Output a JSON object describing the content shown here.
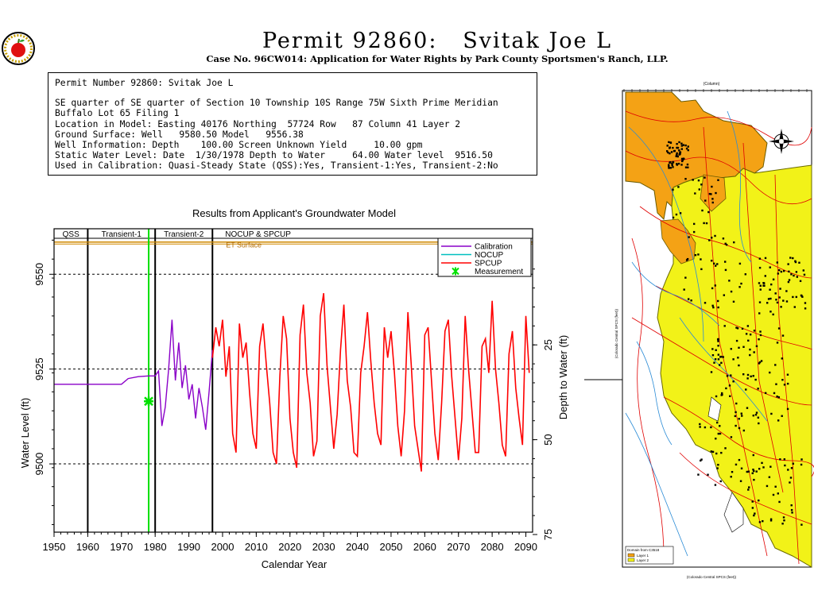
{
  "header": {
    "title": "Permit 92860:   Svitak Joe L",
    "subtitle": "Case No. 96CW014: Application for Water Rights by Park County Sportsmen's Ranch, LLP."
  },
  "logo_icon": "apple-seal-icon",
  "info": {
    "line1": "Permit Number 92860: Svitak Joe L",
    "line2": "SE quarter of SE quarter of Section 10 Township 10S Range 75W Sixth Prime Meridian",
    "line3": "Buffalo Lot 65 Filing 1",
    "line4": "Location in Model: Easting 40176 Northing  57724 Row   87 Column 41 Layer 2",
    "line5": "Ground Surface: Well   9580.50 Model   9556.38",
    "line6": "Well Information: Depth    100.00 Screen Unknown Yield     10.00 gpm",
    "line7": "Static Water Level: Date  1/30/1978 Depth to Water     64.00 Water level  9516.50",
    "line8": "Used in Calibration: Quasi-Steady State (QSS):Yes, Transient-1:Yes, Transient-2:No"
  },
  "chart_data": {
    "type": "line",
    "title": "Results from Applicant's Groundwater Model",
    "xlabel": "Calendar Year",
    "ylabel": "Water Level (ft)",
    "ylabel_right": "Depth to Water (ft)",
    "xlim": [
      1950,
      2092
    ],
    "ylim": [
      9482,
      9562
    ],
    "x_ticks": [
      1950,
      1960,
      1970,
      1980,
      1990,
      2000,
      2010,
      2020,
      2030,
      2040,
      2050,
      2060,
      2070,
      2080,
      2090
    ],
    "y_ticks": [
      9500,
      9525,
      9550
    ],
    "y_right_ticks": [
      25,
      50,
      75
    ],
    "ground_surface_model": 9556.38,
    "period_labels": [
      "QSS",
      "Transient-1",
      "Transient-2",
      "NOCUP & SPCUP"
    ],
    "period_boundaries": [
      1960,
      1980,
      1997
    ],
    "et_surface_label": "ET Surface",
    "et_surface_level": 9558.5,
    "measurement": {
      "year": 1978.08,
      "level": 9516.5,
      "name": "Measurement",
      "color": "#00e000"
    },
    "legend": [
      "Calibration",
      "NOCUP",
      "SPCUP",
      "Measurement"
    ],
    "legend_location": "top-right",
    "grid_dashed_levels": [
      9500,
      9525,
      9550
    ],
    "series": [
      {
        "name": "Calibration",
        "color": "#8a00c8",
        "x": [
          1950,
          1970,
          1972,
          1975,
          1978,
          1980,
          1981,
          1982,
          1983,
          1984,
          1985,
          1986,
          1987,
          1988,
          1989,
          1990,
          1991,
          1992,
          1993,
          1994,
          1995,
          1996,
          1997
        ],
        "y": [
          9521,
          9521,
          9522.5,
          9523,
          9523.2,
          9523.2,
          9524.5,
          9510,
          9515,
          9525,
          9538,
          9522,
          9532,
          9520,
          9526,
          9517,
          9521,
          9512,
          9520,
          9515,
          9509,
          9519,
          9530
        ]
      },
      {
        "name": "SPCUP",
        "color": "#ff0000",
        "x": [
          1997,
          1998,
          1999,
          2000,
          2001,
          2002,
          2003,
          2004,
          2005,
          2006,
          2007,
          2008,
          2009,
          2010,
          2011,
          2012,
          2013,
          2014,
          2015,
          2016,
          2017,
          2018,
          2019,
          2020,
          2021,
          2022,
          2023,
          2024,
          2025,
          2026,
          2027,
          2028,
          2029,
          2030,
          2031,
          2032,
          2033,
          2034,
          2035,
          2036,
          2037,
          2038,
          2039,
          2040,
          2041,
          2042,
          2043,
          2044,
          2045,
          2046,
          2047,
          2048,
          2049,
          2050,
          2051,
          2052,
          2053,
          2054,
          2055,
          2056,
          2057,
          2058,
          2059,
          2060,
          2061,
          2062,
          2063,
          2064,
          2065,
          2066,
          2067,
          2068,
          2069,
          2070,
          2071,
          2072,
          2073,
          2074,
          2075,
          2076,
          2077,
          2078,
          2079,
          2080,
          2081,
          2082,
          2083,
          2084,
          2085,
          2086,
          2087,
          2088,
          2089,
          2090,
          2091
        ],
        "y": [
          9528,
          9536,
          9531,
          9538,
          9523,
          9531,
          9508,
          9503,
          9537,
          9528,
          9532,
          9519,
          9508,
          9504,
          9531,
          9537,
          9526,
          9516,
          9503,
          9500,
          9523,
          9539,
          9533,
          9512,
          9503,
          9499,
          9534,
          9542,
          9524,
          9516,
          9502,
          9506,
          9539,
          9545,
          9526,
          9515,
          9504,
          9513,
          9530,
          9542,
          9522,
          9515,
          9503,
          9502,
          9524,
          9531,
          9540,
          9527,
          9516,
          9508,
          9505,
          9536,
          9528,
          9535,
          9524,
          9510,
          9502,
          9514,
          9540,
          9526,
          9510,
          9504,
          9498,
          9534,
          9536,
          9522,
          9508,
          9501,
          9516,
          9535,
          9538,
          9523,
          9512,
          9501,
          9512,
          9539,
          9525,
          9514,
          9503,
          9503,
          9531,
          9533,
          9524,
          9543,
          9525,
          9516,
          9505,
          9502,
          9529,
          9535,
          9520,
          9512,
          9505,
          9539,
          9524
        ]
      },
      {
        "name": "NOCUP",
        "color": "#00c0c0",
        "x": [],
        "y": []
      }
    ]
  },
  "map": {
    "top_axis_label": "(Column)",
    "left_axis_label": "(Colorado Central SPCS (feet))",
    "bottom_axis_label": "(Colorado Central SPCS (feet))",
    "legend_title": "Domain from C3518",
    "legend_items": [
      "Layer 1",
      "Layer 2"
    ],
    "colors": {
      "layer1": "#f4a215",
      "layer2": "#f2f218",
      "roads": "#e00000",
      "streams": "#2a8bd6",
      "wells": "#000000"
    },
    "compass_icon": "compass-rose-icon"
  }
}
